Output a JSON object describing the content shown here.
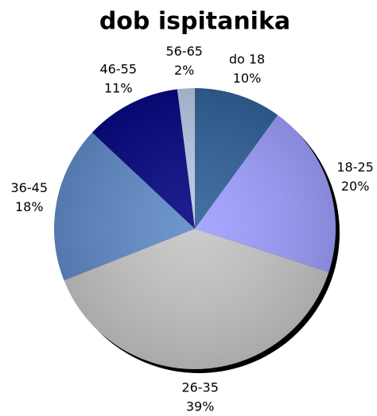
{
  "chart_data": {
    "type": "pie",
    "title": "dob ispitanika",
    "categories": [
      "do 18",
      "18-25",
      "26-35",
      "36-45",
      "46-55",
      "56-65"
    ],
    "values": [
      10,
      20,
      39,
      18,
      11,
      2
    ],
    "value_labels": [
      "10%",
      "20%",
      "39%",
      "18%",
      "11%",
      "2%"
    ],
    "colors": [
      "#2b5d96",
      "#9c9cff",
      "#c4c4c4",
      "#5c88c8",
      "#000080",
      "#b8c8e6"
    ]
  }
}
